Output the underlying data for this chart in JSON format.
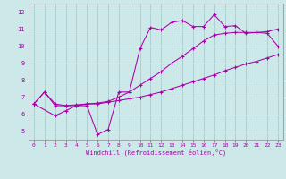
{
  "xlabel": "Windchill (Refroidissement éolien,°C)",
  "bg_color": "#cce8e8",
  "grid_color": "#aacccc",
  "line_color": "#aa00aa",
  "xlim": [
    -0.5,
    23.5
  ],
  "ylim": [
    4.5,
    12.5
  ],
  "xticks": [
    0,
    1,
    2,
    3,
    4,
    5,
    6,
    7,
    8,
    9,
    10,
    11,
    12,
    13,
    14,
    15,
    16,
    17,
    18,
    19,
    20,
    21,
    22,
    23
  ],
  "yticks": [
    5,
    6,
    7,
    8,
    9,
    10,
    11,
    12
  ],
  "line1_x": [
    0,
    1,
    2,
    3,
    4,
    5,
    6,
    7,
    8,
    9,
    10,
    11,
    12,
    13,
    14,
    15,
    16,
    17,
    18,
    19,
    20,
    21,
    22,
    23
  ],
  "line1_y": [
    6.6,
    7.3,
    6.6,
    6.5,
    6.5,
    6.6,
    6.6,
    6.7,
    6.8,
    6.9,
    7.0,
    7.15,
    7.3,
    7.5,
    7.7,
    7.9,
    8.1,
    8.3,
    8.55,
    8.75,
    8.95,
    9.1,
    9.3,
    9.5
  ],
  "line2_x": [
    0,
    1,
    2,
    3,
    4,
    5,
    6,
    7,
    8,
    9,
    10,
    11,
    12,
    13,
    14,
    15,
    16,
    17,
    18,
    19,
    20,
    21,
    22,
    23
  ],
  "line2_y": [
    6.6,
    7.3,
    6.5,
    6.5,
    6.55,
    6.6,
    6.65,
    6.75,
    7.0,
    7.3,
    7.7,
    8.1,
    8.5,
    9.0,
    9.4,
    9.85,
    10.3,
    10.65,
    10.75,
    10.8,
    10.8,
    10.8,
    10.75,
    10.0
  ],
  "line3_x": [
    0,
    2,
    3,
    4,
    5,
    6,
    7,
    8,
    9,
    10,
    11,
    12,
    13,
    14,
    15,
    16,
    17,
    18,
    19,
    20,
    21,
    22,
    23
  ],
  "line3_y": [
    6.6,
    5.9,
    6.2,
    6.5,
    6.5,
    4.8,
    5.1,
    7.3,
    7.3,
    9.85,
    11.1,
    10.95,
    11.4,
    11.5,
    11.15,
    11.15,
    11.85,
    11.15,
    11.2,
    10.75,
    10.8,
    10.85,
    11.0
  ]
}
